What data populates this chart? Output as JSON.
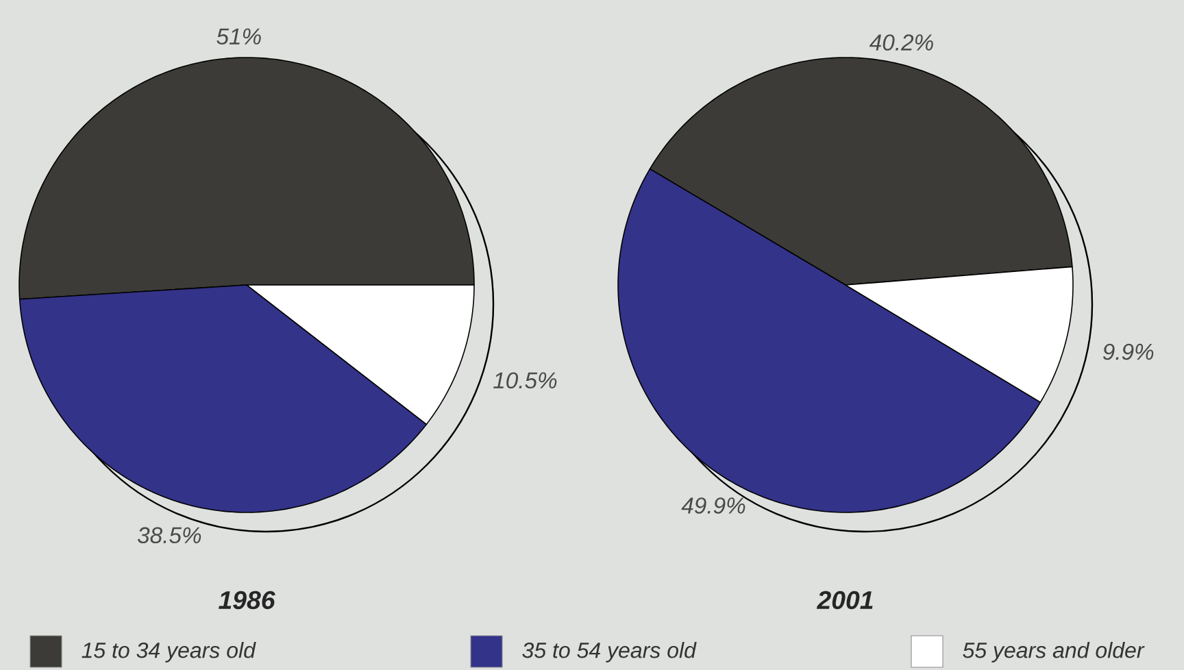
{
  "chart_data": {
    "type": "pie",
    "categories": [
      "15 to 34 years old",
      "35 to 54 years old",
      "55 years and older"
    ],
    "colors": [
      "#3c3b37",
      "#33338a",
      "#ffffff"
    ],
    "legend": "bottom",
    "series": [
      {
        "name": "1986",
        "values": [
          51,
          38.5,
          10.5
        ],
        "value_labels": [
          "51%",
          "38.5%",
          "10.5%"
        ]
      },
      {
        "name": "2001",
        "values": [
          40.2,
          49.9,
          9.9
        ],
        "value_labels": [
          "40.2%",
          "49.9%",
          "9.9%"
        ]
      }
    ]
  }
}
